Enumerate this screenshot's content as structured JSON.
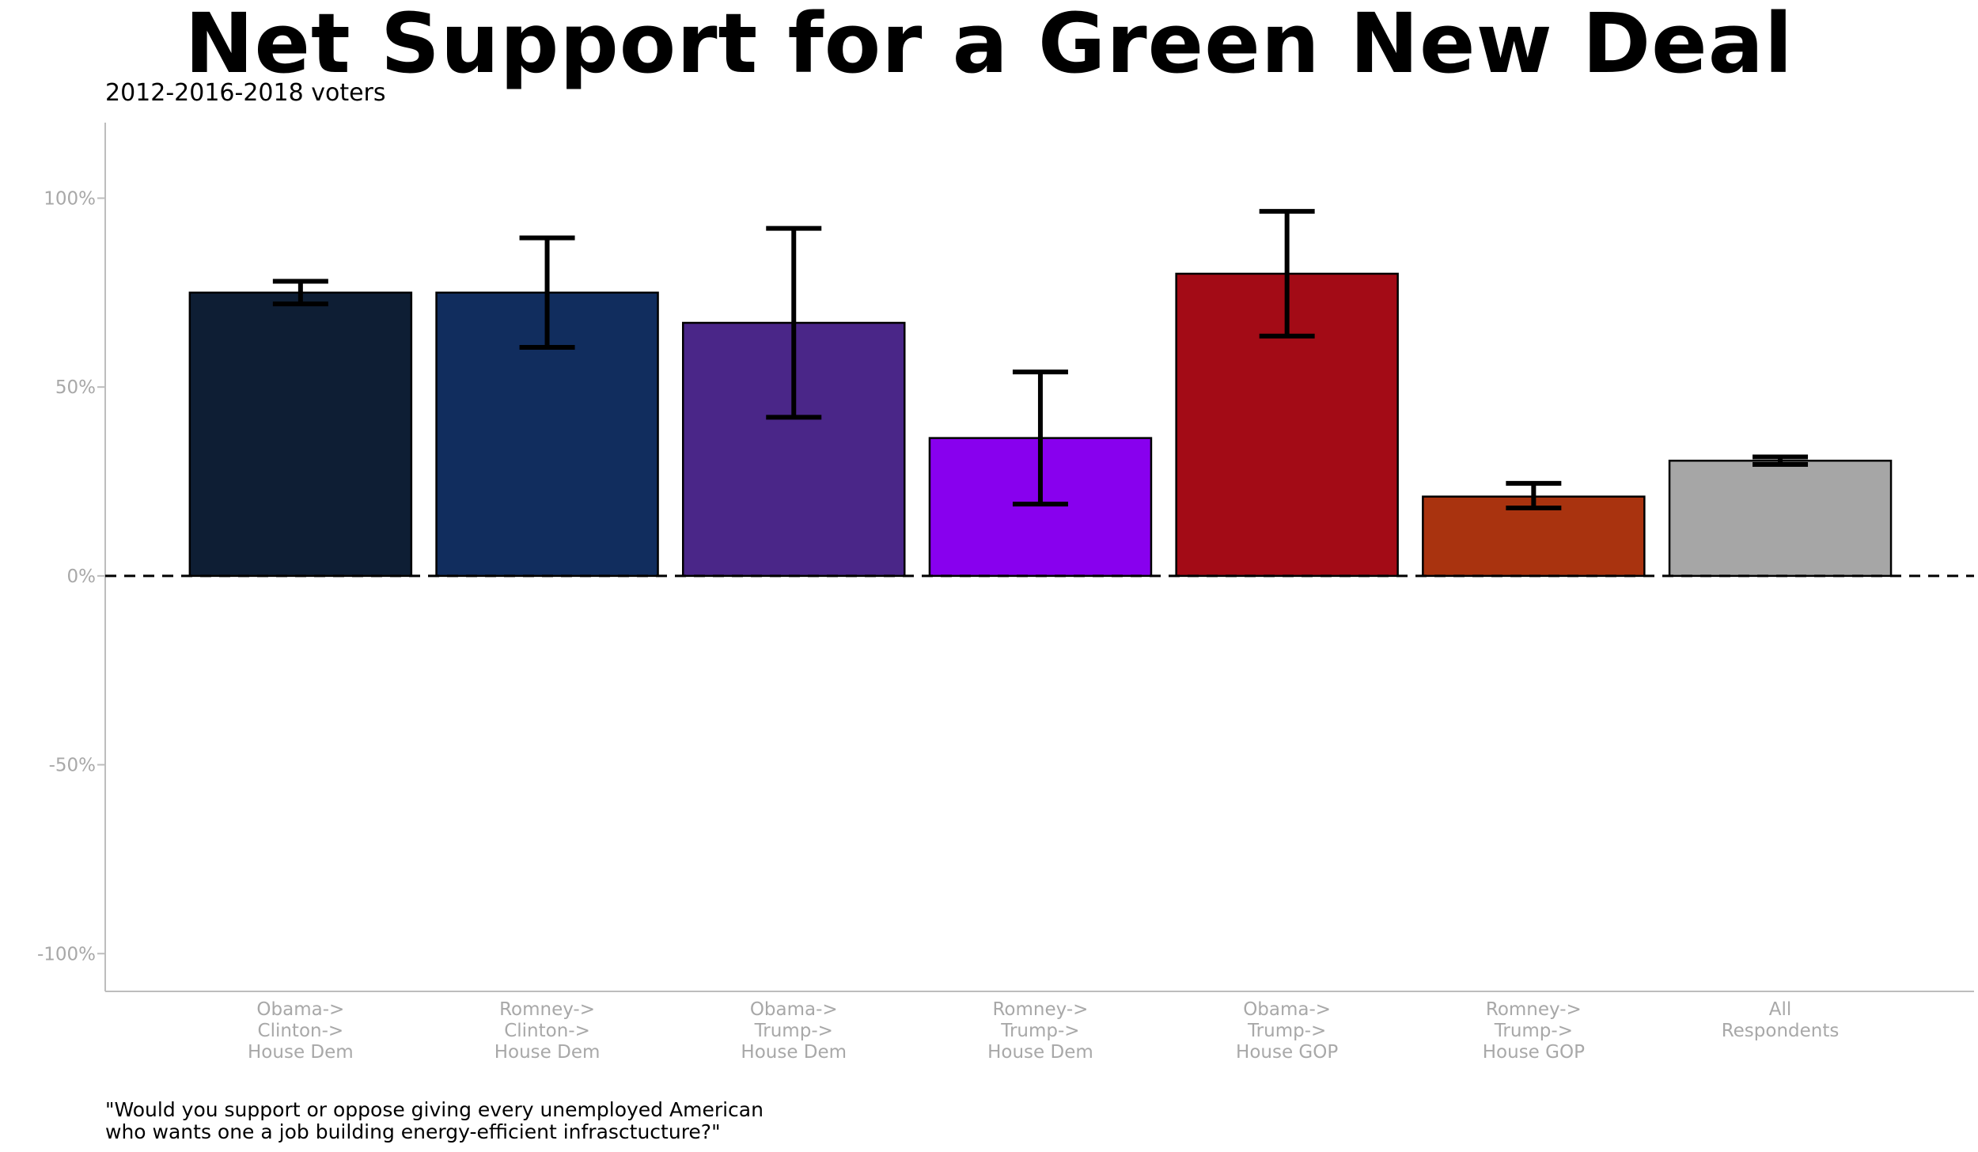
{
  "chart_data": {
    "type": "bar",
    "title": "Net Support for a Green New Deal",
    "subtitle": "2012-2016-2018 voters",
    "xlabel": "",
    "ylabel": "",
    "ylim": [
      -110,
      120
    ],
    "y_ticks": [
      100,
      50,
      0,
      -50,
      -100
    ],
    "y_tick_labels": [
      "100%",
      "50%",
      "0%",
      "-50%",
      "-100%"
    ],
    "reference_line": 0,
    "grid": false,
    "legend": "none",
    "categories": [
      [
        "Obama->",
        "Clinton->",
        "House Dem"
      ],
      [
        "Romney->",
        "Clinton->",
        "House Dem"
      ],
      [
        "Obama->",
        "Trump->",
        "House Dem"
      ],
      [
        "Romney->",
        "Trump->",
        "House Dem"
      ],
      [
        "Obama->",
        "Trump->",
        "House GOP"
      ],
      [
        "Romney->",
        "Trump->",
        "House GOP"
      ],
      [
        "All",
        "Respondents"
      ]
    ],
    "values": [
      75,
      75,
      67,
      36.5,
      80,
      21,
      30.5
    ],
    "error_low": [
      72,
      60.5,
      42,
      19,
      63.5,
      18,
      29.5
    ],
    "error_high": [
      78,
      89.5,
      92,
      54,
      96.5,
      24.5,
      31.5
    ],
    "colors": [
      "#0e1e34",
      "#112d5e",
      "#4a2688",
      "#8800ee",
      "#a30b16",
      "#a9330f",
      "#a6a6a6"
    ]
  },
  "caption": {
    "line1": "\"Would you support or oppose giving every unemployed American",
    "line2": "who wants one a job building energy-efficient infrasctucture?\""
  }
}
